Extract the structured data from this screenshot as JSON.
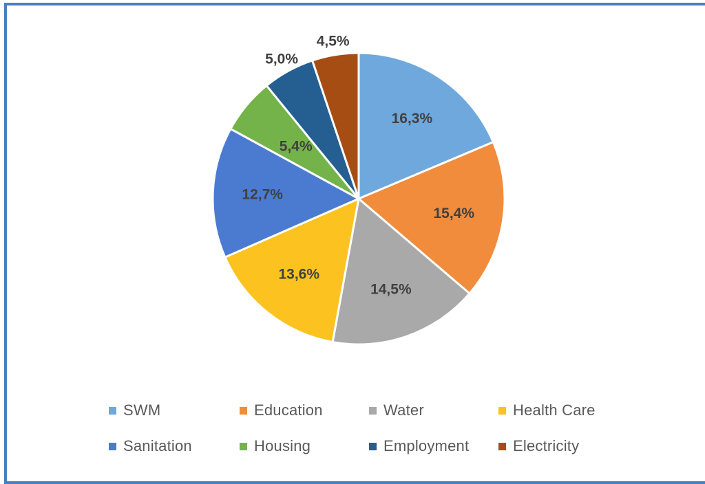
{
  "chart_data": {
    "type": "pie",
    "title": "",
    "categories": [
      "SWM",
      "Education",
      "Water",
      "Health Care",
      "Sanitation",
      "Housing",
      "Employment",
      "Electricity"
    ],
    "values": [
      16.3,
      15.4,
      14.5,
      13.6,
      12.7,
      5.4,
      5.0,
      4.5
    ],
    "labels": [
      "16,3%",
      "15,4%",
      "14,5%",
      "13,6%",
      "12,7%",
      "5,4%",
      "5,0%",
      "4,5%"
    ],
    "colors": [
      "#6fa8dc",
      "#f08c3c",
      "#a9a9a9",
      "#fcc320",
      "#4b7bd1",
      "#73b34a",
      "#255e91",
      "#a64d14"
    ],
    "start_angle_deg": 0,
    "direction": "clockwise",
    "legend_position": "bottom"
  },
  "frame": {
    "border_color": "#4a7ec2"
  }
}
